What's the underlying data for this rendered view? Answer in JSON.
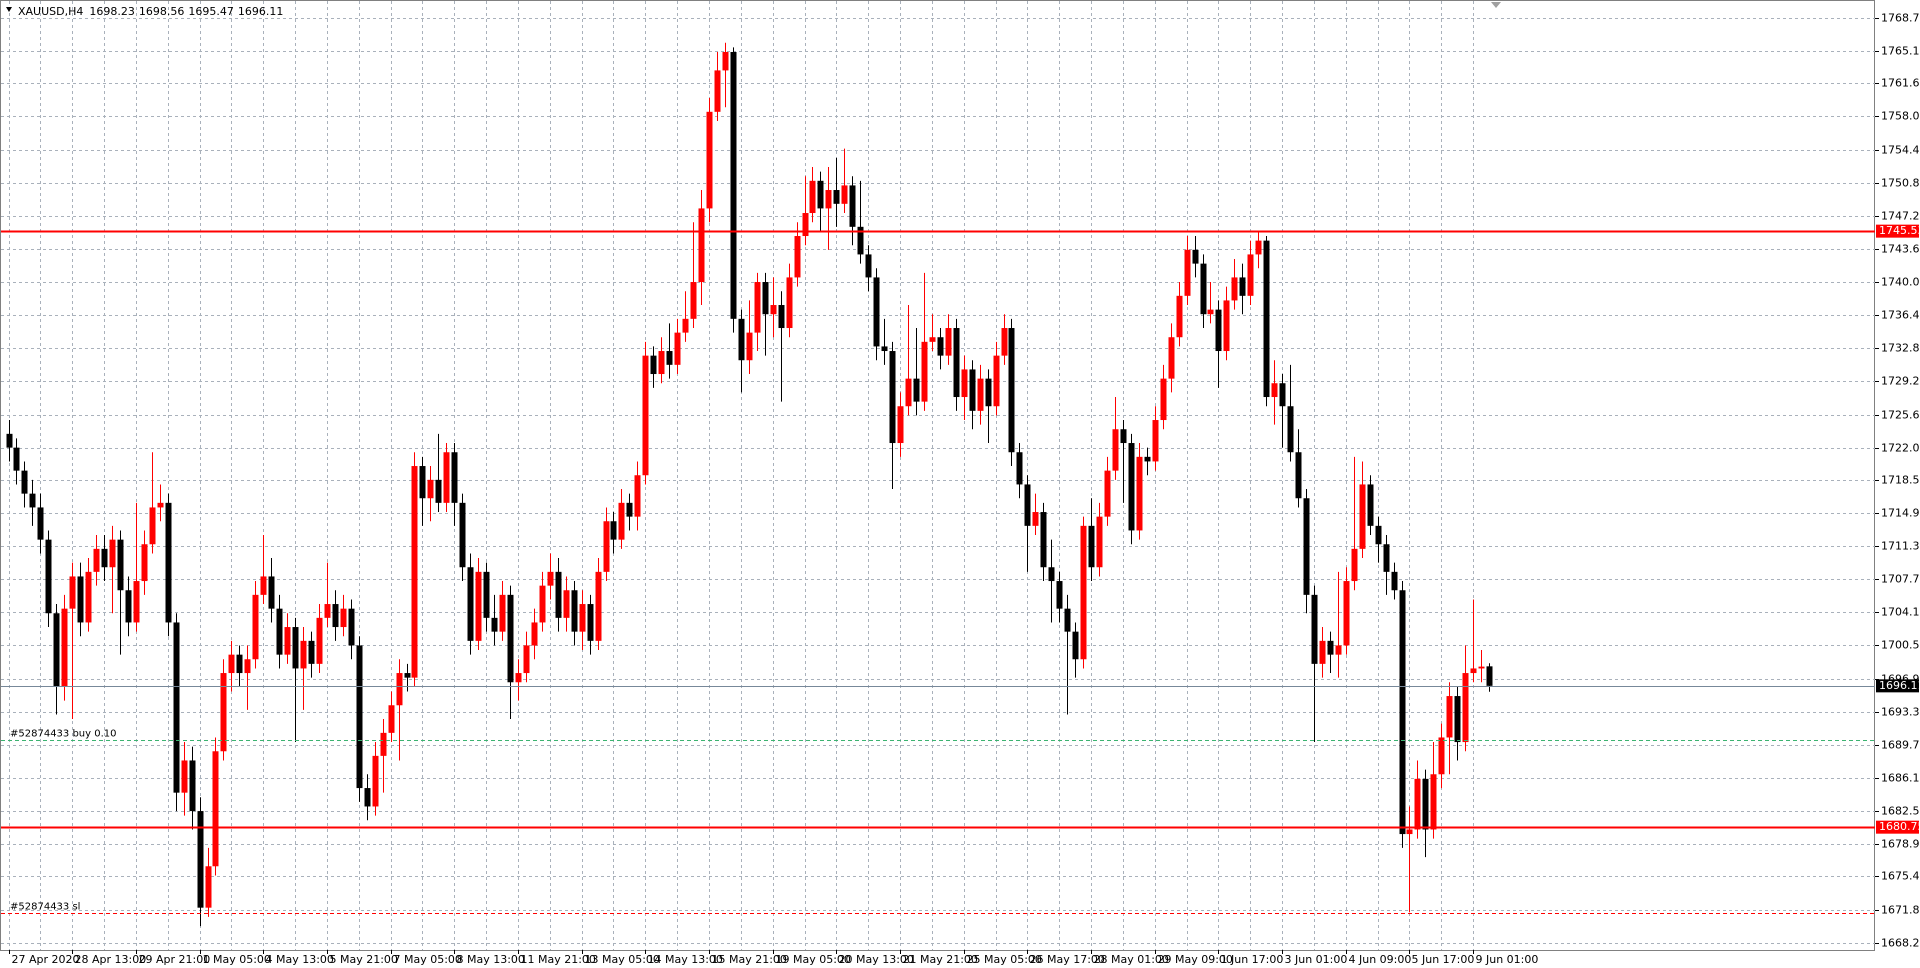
{
  "chart_data": {
    "type": "candlestick",
    "symbol": "XAUUSD,H4",
    "up_color": "#ff0000",
    "down_color": "#000000",
    "grid": true,
    "categories": [
      "27 Apr 2020",
      null,
      null,
      null,
      null,
      null,
      null,
      null,
      "28 Apr 13:00",
      null,
      null,
      null,
      null,
      null,
      null,
      null,
      "29 Apr 21:00",
      null,
      null,
      null,
      null,
      null,
      null,
      null,
      "1 May 05:00",
      null,
      null,
      null,
      null,
      null,
      null,
      null,
      "4 May 13:00",
      null,
      null,
      null,
      null,
      null,
      null,
      null,
      "5 May 21:00",
      null,
      null,
      null,
      null,
      null,
      null,
      null,
      "7 May 05:00",
      null,
      null,
      null,
      null,
      null,
      null,
      null,
      "8 May 13:00",
      null,
      null,
      null,
      null,
      null,
      null,
      null,
      "11 May 21:00",
      null,
      null,
      null,
      null,
      null,
      null,
      null,
      "13 May 05:00",
      null,
      null,
      null,
      null,
      null,
      null,
      null,
      "14 May 13:00",
      null,
      null,
      null,
      null,
      null,
      null,
      null,
      "15 May 21:00",
      null,
      null,
      null,
      null,
      null,
      null,
      null,
      "19 May 05:00",
      null,
      null,
      null,
      null,
      null,
      null,
      null,
      "20 May 13:00",
      null,
      null,
      null,
      null,
      null,
      null,
      null,
      "21 May 21:00",
      null,
      null,
      null,
      null,
      null,
      null,
      null,
      "25 May 05:00",
      null,
      null,
      null,
      null,
      null,
      null,
      null,
      "26 May 17:00",
      null,
      null,
      null,
      null,
      null,
      null,
      null,
      "28 May 01:00",
      null,
      null,
      null,
      null,
      null,
      null,
      null,
      "29 May 09:00",
      null,
      null,
      null,
      null,
      null,
      null,
      null,
      "1 Jun 17:00",
      null,
      null,
      null,
      null,
      null,
      null,
      null,
      "3 Jun 01:00",
      null,
      null,
      null,
      null,
      null,
      null,
      null,
      "4 Jun 09:00",
      null,
      null,
      null,
      null,
      null,
      null,
      null,
      "5 Jun 17:00",
      null,
      null,
      null,
      null,
      null,
      null,
      null,
      "9 Jun 01:00",
      null,
      null
    ],
    "open": [
      1723.5,
      1722.0,
      1719.5,
      1717.0,
      1715.5,
      1712.0,
      1704.0,
      1696.0,
      1704.5,
      1708.0,
      1703.0,
      1708.5,
      1711.0,
      1709.0,
      1712.0,
      1706.5,
      1703.0,
      1707.5,
      1711.5,
      1715.5,
      1716.0,
      1703.0,
      1684.5,
      1688.0,
      1682.5,
      1672.0,
      1676.5,
      1689.0,
      1697.5,
      1699.5,
      1697.5,
      1699.0,
      1706.0,
      1708.0,
      1704.5,
      1699.5,
      1702.5,
      1698.0,
      1701.0,
      1698.5,
      1703.5,
      1705.0,
      1702.5,
      1704.5,
      1700.5,
      1685.0,
      1683.0,
      1688.5,
      1691.0,
      1694.0,
      1697.5,
      1697.0,
      1720.0,
      1716.5,
      1718.5,
      1716.0,
      1721.5,
      1716.0,
      1709.0,
      1701.0,
      1708.5,
      1703.5,
      1702.0,
      1706.0,
      1696.5,
      1697.5,
      1700.5,
      1703.0,
      1707.0,
      1708.5,
      1703.5,
      1706.5,
      1702.0,
      1705.0,
      1701.0,
      1708.5,
      1714.0,
      1712.0,
      1716.0,
      1714.5,
      1719.0,
      1732.0,
      1730.0,
      1732.5,
      1731.0,
      1734.5,
      1736.0,
      1740.0,
      1748.0,
      1758.5,
      1763.0,
      1765.0,
      1736.0,
      1731.5,
      1734.5,
      1740.0,
      1736.5,
      1737.5,
      1735.0,
      1740.5,
      1745.0,
      1747.5,
      1751.0,
      1748.0,
      1750.0,
      1748.5,
      1750.5,
      1746.0,
      1743.0,
      1740.5,
      1733.0,
      1732.5,
      1722.5,
      1726.5,
      1729.5,
      1727.0,
      1733.5,
      1734.0,
      1732.0,
      1735.0,
      1727.5,
      1730.5,
      1726.0,
      1729.5,
      1726.5,
      1732.0,
      1735.0,
      1721.5,
      1718.0,
      1713.5,
      1715.0,
      1709.0,
      1707.5,
      1704.5,
      1702.0,
      1699.0,
      1713.5,
      1709.0,
      1714.5,
      1719.5,
      1724.0,
      1722.5,
      1713.0,
      1721.0,
      1720.5,
      1725.0,
      1729.5,
      1734.0,
      1738.5,
      1743.5,
      1742.0,
      1736.5,
      1737.0,
      1732.5,
      1738.0,
      1740.5,
      1738.5,
      1743.0,
      1744.5,
      1727.5,
      1729.0,
      1726.5,
      1721.5,
      1716.5,
      1706.0,
      1698.5,
      1701.0,
      1699.5,
      1700.5,
      1707.5,
      1711.0,
      1718.0,
      1713.5,
      1711.5,
      1708.5,
      1706.5,
      1680.0,
      1680.5,
      1686.0,
      1680.5,
      1686.5,
      1690.5,
      1695.0,
      1690.0,
      1697.5,
      1698.0,
      1698.23
    ],
    "high": [
      1725.0,
      1723.0,
      1720.5,
      1718.5,
      1717.0,
      1713.0,
      1705.0,
      1706.0,
      1709.5,
      1709.5,
      1710.0,
      1712.5,
      1712.5,
      1713.5,
      1713.0,
      1708.0,
      1716.0,
      1713.0,
      1721.5,
      1718.0,
      1717.0,
      1704.0,
      1690.0,
      1689.5,
      1684.0,
      1678.5,
      1690.5,
      1699.0,
      1701.0,
      1700.5,
      1700.5,
      1707.5,
      1712.5,
      1710.0,
      1706.0,
      1704.0,
      1703.5,
      1702.5,
      1702.0,
      1705.0,
      1709.5,
      1706.5,
      1706.0,
      1705.5,
      1701.5,
      1686.5,
      1690.0,
      1692.5,
      1695.5,
      1699.0,
      1698.5,
      1721.5,
      1721.0,
      1720.0,
      1723.5,
      1722.5,
      1722.5,
      1717.0,
      1710.5,
      1710.0,
      1709.5,
      1706.0,
      1707.5,
      1707.0,
      1699.0,
      1702.0,
      1704.5,
      1708.5,
      1710.5,
      1710.0,
      1708.0,
      1707.5,
      1706.5,
      1706.0,
      1710.0,
      1715.5,
      1715.0,
      1717.5,
      1717.0,
      1720.5,
      1733.5,
      1733.0,
      1734.0,
      1735.5,
      1736.0,
      1739.0,
      1746.5,
      1750.0,
      1760.0,
      1765.0,
      1766.0,
      1765.5,
      1737.0,
      1738.0,
      1741.0,
      1741.0,
      1740.5,
      1739.0,
      1742.0,
      1746.5,
      1751.5,
      1752.5,
      1752.0,
      1752.5,
      1753.5,
      1754.5,
      1751.5,
      1751.0,
      1744.0,
      1741.5,
      1736.0,
      1733.5,
      1728.0,
      1737.5,
      1735.0,
      1741.0,
      1736.5,
      1735.0,
      1736.5,
      1736.0,
      1732.0,
      1731.5,
      1731.0,
      1730.5,
      1733.5,
      1736.5,
      1736.0,
      1722.5,
      1719.0,
      1717.0,
      1716.0,
      1712.0,
      1708.5,
      1706.0,
      1703.0,
      1714.5,
      1716.5,
      1716.0,
      1721.0,
      1727.5,
      1725.0,
      1723.5,
      1722.5,
      1722.0,
      1726.5,
      1731.0,
      1735.5,
      1740.0,
      1745.0,
      1745.0,
      1743.0,
      1740.0,
      1738.0,
      1739.5,
      1742.5,
      1742.0,
      1744.5,
      1745.5,
      1745.0,
      1731.5,
      1730.0,
      1731.0,
      1724.0,
      1717.5,
      1707.0,
      1702.5,
      1702.0,
      1708.5,
      1709.0,
      1721.0,
      1720.5,
      1719.0,
      1714.5,
      1712.5,
      1709.5,
      1707.5,
      1683.0,
      1688.0,
      1687.0,
      1690.0,
      1692.0,
      1696.5,
      1696.0,
      1700.5,
      1705.5,
      1700.0,
      1698.56
    ],
    "low": [
      1720.5,
      1718.0,
      1715.5,
      1713.5,
      1710.5,
      1702.5,
      1693.0,
      1694.5,
      1692.5,
      1701.5,
      1702.0,
      1707.0,
      1707.5,
      1704.0,
      1699.5,
      1701.5,
      1702.0,
      1706.0,
      1710.5,
      1714.0,
      1701.5,
      1682.5,
      1682.0,
      1680.5,
      1670.0,
      1671.0,
      1675.5,
      1688.0,
      1695.5,
      1696.0,
      1693.5,
      1698.0,
      1705.0,
      1703.0,
      1698.0,
      1698.5,
      1690.0,
      1693.5,
      1697.0,
      1697.5,
      1702.5,
      1701.0,
      1701.5,
      1699.0,
      1683.5,
      1681.5,
      1682.0,
      1684.5,
      1690.0,
      1688.0,
      1695.5,
      1696.0,
      1713.5,
      1714.0,
      1715.0,
      1715.0,
      1713.5,
      1707.5,
      1699.5,
      1700.0,
      1702.0,
      1700.5,
      1701.0,
      1692.5,
      1694.5,
      1696.5,
      1699.0,
      1702.0,
      1705.5,
      1702.0,
      1702.0,
      1700.5,
      1700.0,
      1699.5,
      1700.0,
      1707.5,
      1710.5,
      1711.0,
      1713.0,
      1713.0,
      1718.0,
      1728.5,
      1729.0,
      1729.5,
      1730.0,
      1733.5,
      1735.0,
      1737.5,
      1746.5,
      1757.5,
      1759.0,
      1734.5,
      1728.0,
      1730.0,
      1732.5,
      1732.0,
      1734.0,
      1727.0,
      1734.0,
      1739.5,
      1744.0,
      1746.5,
      1745.5,
      1743.5,
      1746.0,
      1747.5,
      1744.0,
      1742.0,
      1739.0,
      1731.5,
      1731.0,
      1717.5,
      1721.0,
      1725.5,
      1725.5,
      1726.0,
      1732.5,
      1730.5,
      1731.0,
      1726.0,
      1725.0,
      1724.0,
      1724.5,
      1722.5,
      1725.5,
      1731.0,
      1720.0,
      1716.5,
      1708.5,
      1712.5,
      1707.5,
      1703.0,
      1703.0,
      1693.0,
      1697.0,
      1698.0,
      1707.5,
      1708.0,
      1713.5,
      1718.5,
      1716.0,
      1711.5,
      1712.0,
      1719.0,
      1719.5,
      1724.0,
      1728.0,
      1733.0,
      1737.5,
      1740.5,
      1735.0,
      1735.5,
      1728.5,
      1731.5,
      1737.0,
      1736.5,
      1737.5,
      1741.5,
      1726.5,
      1724.5,
      1722.0,
      1720.5,
      1715.5,
      1704.0,
      1690.0,
      1697.0,
      1697.5,
      1697.0,
      1699.5,
      1706.5,
      1710.0,
      1712.5,
      1709.5,
      1706.0,
      1705.5,
      1678.5,
      1671.5,
      1679.5,
      1677.5,
      1679.5,
      1685.0,
      1686.5,
      1688.0,
      1689.0,
      1696.5,
      1696.5,
      1695.47
    ],
    "close": [
      1722.0,
      1719.5,
      1717.0,
      1715.5,
      1712.0,
      1704.0,
      1696.0,
      1704.5,
      1708.0,
      1703.0,
      1708.5,
      1711.0,
      1709.0,
      1712.0,
      1706.5,
      1703.0,
      1707.5,
      1711.5,
      1715.5,
      1716.0,
      1703.0,
      1684.5,
      1688.0,
      1682.5,
      1672.0,
      1676.5,
      1689.0,
      1697.5,
      1699.5,
      1697.5,
      1699.0,
      1706.0,
      1708.0,
      1704.5,
      1699.5,
      1702.5,
      1698.0,
      1701.0,
      1698.5,
      1703.5,
      1705.0,
      1702.5,
      1704.5,
      1700.5,
      1685.0,
      1683.0,
      1688.5,
      1691.0,
      1694.0,
      1697.5,
      1697.0,
      1720.0,
      1716.5,
      1718.5,
      1716.0,
      1721.5,
      1716.0,
      1709.0,
      1701.0,
      1708.5,
      1703.5,
      1702.0,
      1706.0,
      1696.5,
      1697.5,
      1700.5,
      1703.0,
      1707.0,
      1708.5,
      1703.5,
      1706.5,
      1702.0,
      1705.0,
      1701.0,
      1708.5,
      1714.0,
      1712.0,
      1716.0,
      1714.5,
      1719.0,
      1732.0,
      1730.0,
      1732.5,
      1731.0,
      1734.5,
      1736.0,
      1740.0,
      1748.0,
      1758.5,
      1763.0,
      1765.0,
      1736.0,
      1731.5,
      1734.5,
      1740.0,
      1736.5,
      1737.5,
      1735.0,
      1740.5,
      1745.0,
      1747.5,
      1751.0,
      1748.0,
      1750.0,
      1748.5,
      1750.5,
      1746.0,
      1743.0,
      1740.5,
      1733.0,
      1732.5,
      1722.5,
      1726.5,
      1729.5,
      1727.0,
      1733.5,
      1734.0,
      1732.0,
      1735.0,
      1727.5,
      1730.5,
      1726.0,
      1729.5,
      1726.5,
      1732.0,
      1735.0,
      1721.5,
      1718.0,
      1713.5,
      1715.0,
      1709.0,
      1707.5,
      1704.5,
      1702.0,
      1699.0,
      1713.5,
      1709.0,
      1714.5,
      1719.5,
      1724.0,
      1722.5,
      1713.0,
      1721.0,
      1720.5,
      1725.0,
      1729.5,
      1734.0,
      1738.5,
      1743.5,
      1742.0,
      1736.5,
      1737.0,
      1732.5,
      1738.0,
      1740.5,
      1738.5,
      1743.0,
      1744.5,
      1727.5,
      1729.0,
      1726.5,
      1721.5,
      1716.5,
      1706.0,
      1698.5,
      1701.0,
      1699.5,
      1700.5,
      1707.5,
      1711.0,
      1718.0,
      1713.5,
      1711.5,
      1708.5,
      1706.5,
      1680.0,
      1680.5,
      1686.0,
      1680.5,
      1686.5,
      1690.5,
      1695.0,
      1690.0,
      1697.5,
      1698.0,
      1698.2,
      1696.11
    ],
    "ylim": [
      1667.4,
      1770.0
    ],
    "yticks": [
      {
        "value": 1768.7,
        "label": "1768.70"
      },
      {
        "value": 1765.1,
        "label": "1765.10"
      },
      {
        "value": 1761.6,
        "label": "1761.60"
      },
      {
        "value": 1758.0,
        "label": "1758.00"
      },
      {
        "value": 1754.4,
        "label": "1754.40"
      },
      {
        "value": 1750.8,
        "label": "1750.80"
      },
      {
        "value": 1747.2,
        "label": "1747.20"
      },
      {
        "value": 1743.6,
        "label": "1743.60"
      },
      {
        "value": 1740.0,
        "label": "1740.00"
      },
      {
        "value": 1736.4,
        "label": "1736.40"
      },
      {
        "value": 1732.8,
        "label": "1732.80"
      },
      {
        "value": 1729.2,
        "label": "1729.20"
      },
      {
        "value": 1725.6,
        "label": "1725.60"
      },
      {
        "value": 1722.0,
        "label": "1722.00"
      },
      {
        "value": 1718.5,
        "label": "1718.50"
      },
      {
        "value": 1714.9,
        "label": "1714.90"
      },
      {
        "value": 1711.3,
        "label": "1711.30"
      },
      {
        "value": 1707.7,
        "label": "1707.70"
      },
      {
        "value": 1704.1,
        "label": "1704.10"
      },
      {
        "value": 1700.5,
        "label": "1700.50"
      },
      {
        "value": 1696.9,
        "label": "1696.90"
      },
      {
        "value": 1693.3,
        "label": "1693.30"
      },
      {
        "value": 1689.7,
        "label": "1689.70"
      },
      {
        "value": 1686.1,
        "label": "1686.10"
      },
      {
        "value": 1682.5,
        "label": "1682.50"
      },
      {
        "value": 1678.9,
        "label": "1678.90"
      },
      {
        "value": 1675.4,
        "label": "1675.40"
      },
      {
        "value": 1671.8,
        "label": "1671.80"
      },
      {
        "value": 1668.2,
        "label": "1668.20"
      }
    ],
    "levels": [
      {
        "value": 1745.53,
        "color": "#ff0000"
      },
      {
        "value": 1680.75,
        "color": "#ff0000"
      }
    ],
    "last_price_color": "#778899",
    "orders": [
      {
        "label": "#52874433 buy 0.10",
        "value": 1690.2,
        "color": "#3cb371"
      },
      {
        "label": "#52874433 sl",
        "value": 1671.4,
        "color": "#ff0000"
      }
    ]
  }
}
